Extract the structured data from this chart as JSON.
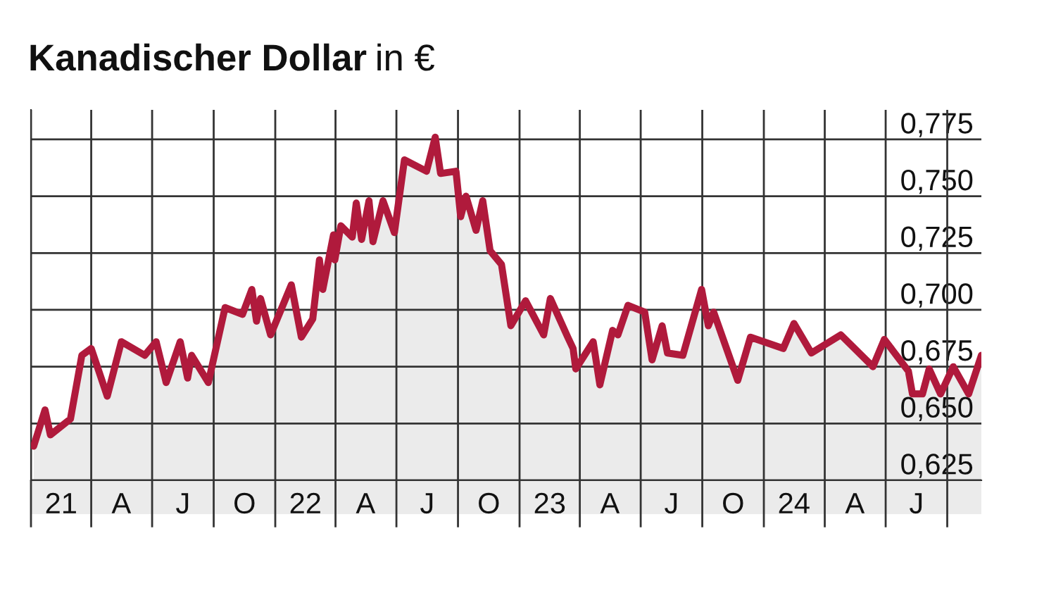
{
  "chart_data": {
    "type": "area",
    "title": "Kanadischer Dollar",
    "subtitle": "in €",
    "x": [
      "2021-01-05",
      "2021-01-22",
      "2021-01-30",
      "2021-03-01",
      "2021-03-18",
      "2021-04-01",
      "2021-04-25",
      "2021-05-16",
      "2021-06-20",
      "2021-07-07",
      "2021-07-22",
      "2021-08-12",
      "2021-08-23",
      "2021-08-29",
      "2021-09-23",
      "2021-10-18",
      "2021-11-13",
      "2021-11-27",
      "2021-12-04",
      "2021-12-10",
      "2021-12-25",
      "2022-01-25",
      "2022-02-09",
      "2022-02-26",
      "2022-03-08",
      "2022-03-13",
      "2022-03-29",
      "2022-03-31",
      "2022-04-09",
      "2022-04-26",
      "2022-05-02",
      "2022-05-10",
      "2022-05-21",
      "2022-05-27",
      "2022-06-11",
      "2022-06-28",
      "2022-07-13",
      "2022-08-15",
      "2022-08-28",
      "2022-09-05",
      "2022-09-28",
      "2022-10-05",
      "2022-10-13",
      "2022-10-28",
      "2022-11-07",
      "2022-11-18",
      "2022-12-05",
      "2022-12-19",
      "2023-01-10",
      "2023-02-06",
      "2023-02-16",
      "2023-03-14",
      "2023-03-22",
      "2023-03-26",
      "2023-04-21",
      "2023-05-01",
      "2023-05-20",
      "2023-05-28",
      "2023-06-12",
      "2023-07-07",
      "2023-07-18",
      "2023-08-02",
      "2023-08-10",
      "2023-09-02",
      "2023-09-30",
      "2023-10-10",
      "2023-10-18",
      "2023-11-23",
      "2023-12-12",
      "2024-01-30",
      "2024-02-15",
      "2024-03-12",
      "2024-04-25",
      "2024-06-12",
      "2024-06-29",
      "2024-08-04",
      "2024-08-10",
      "2024-08-25",
      "2024-09-04",
      "2024-09-21",
      "2024-10-10",
      "2024-11-02",
      "2024-11-21"
    ],
    "series": [
      {
        "color": "#b01a3c",
        "values": [
          0.64,
          0.656,
          0.645,
          0.652,
          0.68,
          0.683,
          0.662,
          0.686,
          0.68,
          0.686,
          0.668,
          0.686,
          0.67,
          0.68,
          0.668,
          0.701,
          0.698,
          0.709,
          0.695,
          0.705,
          0.689,
          0.711,
          0.688,
          0.696,
          0.722,
          0.709,
          0.733,
          0.722,
          0.737,
          0.732,
          0.747,
          0.731,
          0.748,
          0.73,
          0.748,
          0.734,
          0.766,
          0.761,
          0.776,
          0.76,
          0.761,
          0.741,
          0.75,
          0.735,
          0.748,
          0.726,
          0.72,
          0.693,
          0.704,
          0.689,
          0.705,
          0.688,
          0.683,
          0.674,
          0.686,
          0.667,
          0.691,
          0.689,
          0.702,
          0.699,
          0.678,
          0.693,
          0.681,
          0.68,
          0.709,
          0.693,
          0.699,
          0.669,
          0.688,
          0.683,
          0.694,
          0.681,
          0.689,
          0.675,
          0.687,
          0.673,
          0.663,
          0.663,
          0.674,
          0.663,
          0.675,
          0.663,
          0.68
        ]
      }
    ],
    "xlim": [
      "2021-01-01",
      "2024-11-21"
    ],
    "xticks": [
      {
        "value": "2021-01-01",
        "label": null
      },
      {
        "value": "2021-02-15",
        "label": "21"
      },
      {
        "value": "2021-04-01",
        "label": null
      },
      {
        "value": "2021-05-16",
        "label": "A"
      },
      {
        "value": "2021-07-01",
        "label": null
      },
      {
        "value": "2021-08-16",
        "label": "J"
      },
      {
        "value": "2021-10-01",
        "label": null
      },
      {
        "value": "2021-11-16",
        "label": "O"
      },
      {
        "value": "2022-01-01",
        "label": null
      },
      {
        "value": "2022-02-15",
        "label": "22"
      },
      {
        "value": "2022-04-01",
        "label": null
      },
      {
        "value": "2022-05-16",
        "label": "A"
      },
      {
        "value": "2022-07-01",
        "label": null
      },
      {
        "value": "2022-08-16",
        "label": "J"
      },
      {
        "value": "2022-10-01",
        "label": null
      },
      {
        "value": "2022-11-16",
        "label": "O"
      },
      {
        "value": "2023-01-01",
        "label": null
      },
      {
        "value": "2023-02-15",
        "label": "23"
      },
      {
        "value": "2023-04-01",
        "label": null
      },
      {
        "value": "2023-05-16",
        "label": "A"
      },
      {
        "value": "2023-07-01",
        "label": null
      },
      {
        "value": "2023-08-16",
        "label": "J"
      },
      {
        "value": "2023-10-01",
        "label": null
      },
      {
        "value": "2023-11-16",
        "label": "O"
      },
      {
        "value": "2024-01-01",
        "label": null
      },
      {
        "value": "2024-02-15",
        "label": "24"
      },
      {
        "value": "2024-04-01",
        "label": null
      },
      {
        "value": "2024-05-16",
        "label": "A"
      },
      {
        "value": "2024-07-01",
        "label": null
      },
      {
        "value": "2024-08-16",
        "label": "J"
      },
      {
        "value": "2024-10-01",
        "label": null
      }
    ],
    "ylim": [
      0.625,
      0.788
    ],
    "yticks": [
      {
        "value": 0.625,
        "label": "0,625"
      },
      {
        "value": 0.65,
        "label": "0,650"
      },
      {
        "value": 0.675,
        "label": "0,675"
      },
      {
        "value": 0.7,
        "label": "0,700"
      },
      {
        "value": 0.725,
        "label": "0,725"
      },
      {
        "value": 0.75,
        "label": "0,750"
      },
      {
        "value": 0.775,
        "label": "0,775"
      }
    ],
    "grid": true
  }
}
